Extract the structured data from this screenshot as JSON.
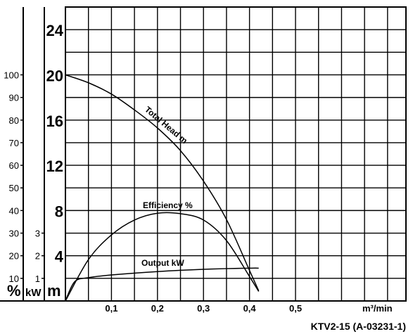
{
  "chart_data": {
    "type": "line",
    "title": "",
    "xlabel": "m³/min",
    "x_ticks": [
      "0,1",
      "0,2",
      "0,3",
      "0,4",
      "0,5"
    ],
    "x_tick_values": [
      0.1,
      0.2,
      0.3,
      0.4,
      0.5
    ],
    "xlim": [
      0,
      0.74
    ],
    "grid": true,
    "axes": [
      {
        "unit": "%",
        "ylim": [
          0,
          130
        ],
        "ticks": [
          "10",
          "20",
          "30",
          "40",
          "50",
          "60",
          "70",
          "80",
          "90",
          "100"
        ],
        "tick_values": [
          10,
          20,
          30,
          40,
          50,
          60,
          70,
          80,
          90,
          100
        ]
      },
      {
        "unit": "kW",
        "ylim": [
          0,
          13
        ],
        "ticks": [
          "1",
          "2",
          "3"
        ],
        "tick_values": [
          1,
          2,
          3
        ]
      },
      {
        "unit": "m",
        "ylim": [
          0,
          26
        ],
        "ticks": [
          "4",
          "8",
          "12",
          "16",
          "20",
          "24"
        ],
        "tick_values": [
          4,
          8,
          12,
          16,
          20,
          24
        ]
      }
    ],
    "series": [
      {
        "name": "Total Head m",
        "axis": "m",
        "x": [
          0,
          0.05,
          0.1,
          0.15,
          0.2,
          0.25,
          0.3,
          0.35,
          0.4,
          0.42
        ],
        "y": [
          20,
          19.3,
          18.3,
          16.9,
          15.3,
          13.3,
          10.6,
          7.2,
          2.7,
          0.9
        ]
      },
      {
        "name": "Efficiency %",
        "axis": "%",
        "x": [
          0,
          0.05,
          0.1,
          0.15,
          0.2,
          0.25,
          0.3,
          0.35,
          0.4,
          0.42
        ],
        "y": [
          0,
          18.3,
          29.2,
          35.8,
          38.8,
          38.6,
          35.8,
          26.7,
          10.8,
          4.2
        ]
      },
      {
        "name": "Output kW",
        "axis": "kW",
        "x": [
          0,
          0.02,
          0.05,
          0.1,
          0.2,
          0.3,
          0.4,
          0.42
        ],
        "y": [
          0,
          0.85,
          1.03,
          1.15,
          1.3,
          1.4,
          1.45,
          1.45
        ]
      }
    ],
    "model_label": "KTV2-15 (A-03231-1)"
  }
}
